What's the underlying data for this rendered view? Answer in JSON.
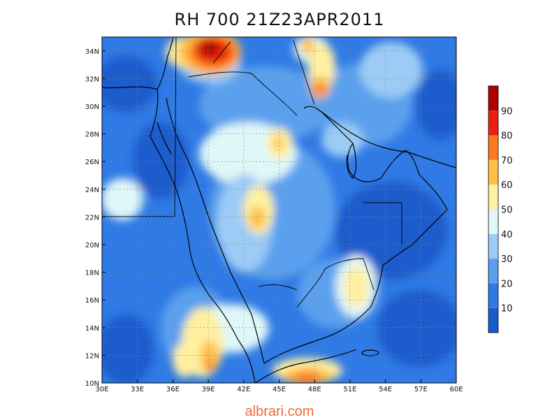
{
  "title": "RH 700  21Z23APR2011",
  "watermark": "albrari.com",
  "map": {
    "lon_range": [
      30,
      60
    ],
    "lat_range": [
      10,
      35
    ],
    "lon_ticks": [
      "30E",
      "33E",
      "36E",
      "39E",
      "42E",
      "45E",
      "48E",
      "51E",
      "54E",
      "57E",
      "60E"
    ],
    "lat_ticks": [
      "10N",
      "12N",
      "14N",
      "16N",
      "18N",
      "20N",
      "22N",
      "24N",
      "26N",
      "28N",
      "30N",
      "32N",
      "34N"
    ],
    "grid": true
  },
  "colorbar": {
    "labels": [
      "10",
      "20",
      "30",
      "40",
      "50",
      "60",
      "70",
      "80",
      "90"
    ],
    "colors": [
      "#1a5ccc",
      "#2f7ae5",
      "#5aa0ee",
      "#9ccbf6",
      "#dff7f7",
      "#fff0a0",
      "#ffc045",
      "#ff7a1e",
      "#e8220f",
      "#b00000"
    ]
  }
}
